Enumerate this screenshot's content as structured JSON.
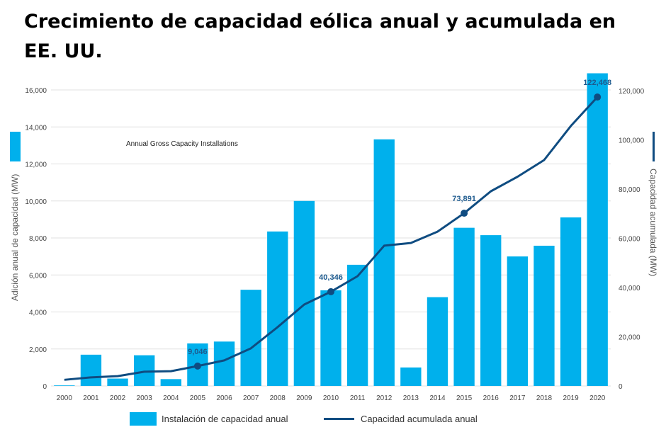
{
  "title": "Crecimiento de capacidad eólica anual y acumulada en EE. UU.",
  "chart_data": {
    "type": "bar+line",
    "title": "Crecimiento de capacidad eólica anual y acumulada en EE. UU.",
    "annotation": "Annual Gross Capacity Installations",
    "categories": [
      "2000",
      "2001",
      "2002",
      "2003",
      "2004",
      "2005",
      "2006",
      "2007",
      "2008",
      "2009",
      "2010",
      "2011",
      "2012",
      "2013",
      "2014",
      "2015",
      "2016",
      "2017",
      "2018",
      "2019",
      "2020"
    ],
    "y_left": {
      "label": "Adición anual de capacidad (MW)",
      "range": [
        0,
        16000
      ],
      "ticks": [
        0,
        2000,
        4000,
        6000,
        8000,
        10000,
        12000,
        14000,
        16000
      ],
      "tick_labels": [
        "0",
        "2,000",
        "4,000",
        "6,000",
        "8,000",
        "10,000",
        "12,000",
        "14,000",
        "16,000"
      ]
    },
    "y_right": {
      "label": "Capacidad acumulada (MW)",
      "range": [
        0,
        120000
      ],
      "ticks": [
        0,
        20000,
        40000,
        60000,
        80000,
        100000,
        120000
      ],
      "tick_labels": [
        "0",
        "20,000",
        "40,000",
        "60,000",
        "80,000",
        "100,000",
        "120,000"
      ]
    },
    "grid": true,
    "legend_placement": "bottom",
    "series": [
      {
        "name": "Instalación de capacidad anual",
        "type": "bar",
        "axis": "left",
        "color": "#00b0ec",
        "values": [
          30,
          1690,
          400,
          1660,
          370,
          2300,
          2400,
          5200,
          8350,
          10000,
          5170,
          6550,
          13330,
          1000,
          4800,
          8550,
          8150,
          7000,
          7580,
          9110,
          16900
        ]
      },
      {
        "name": "Capacidad acumulada anual",
        "type": "line",
        "axis": "right",
        "color": "#0f4c81",
        "values": [
          2500,
          3500,
          4000,
          5800,
          6000,
          8100,
          10400,
          15300,
          23900,
          33100,
          38300,
          44600,
          57000,
          58100,
          62700,
          70200,
          79100,
          85000,
          91800,
          105600,
          117400
        ]
      }
    ],
    "point_labels": [
      {
        "category": "2005",
        "text": "9,046"
      },
      {
        "category": "2010",
        "text": "40,346"
      },
      {
        "category": "2015",
        "text": "73,891"
      },
      {
        "category": "2020",
        "text": "122,468"
      }
    ]
  }
}
